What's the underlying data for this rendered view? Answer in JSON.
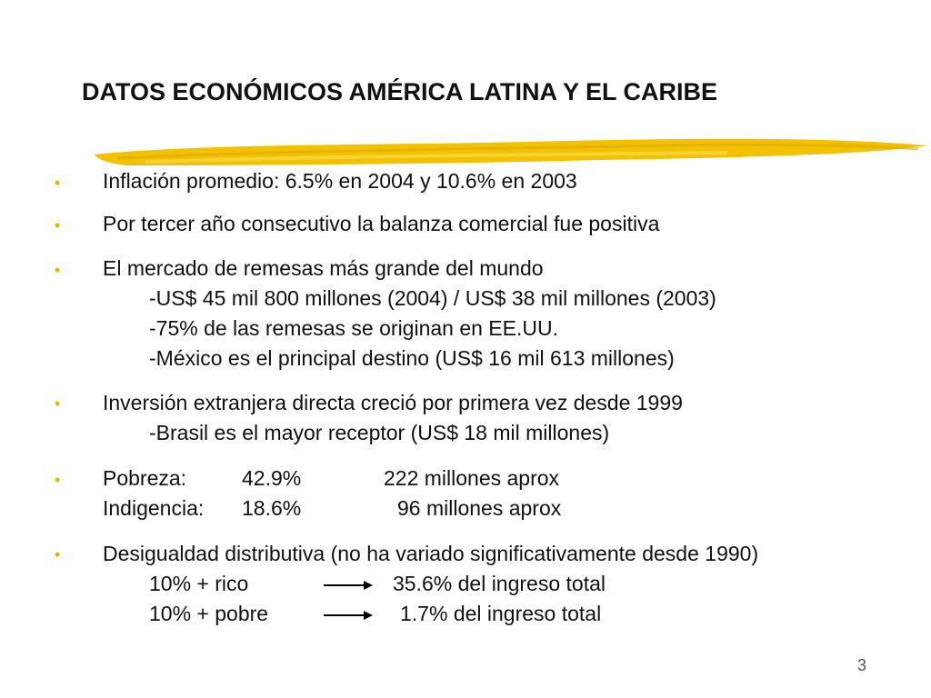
{
  "title": "DATOS ECONÓMICOS AMÉRICA LATINA Y EL CARIBE",
  "accent_color": "#f2c200",
  "bullet_glyph": "•",
  "items": [
    {
      "text": "Inflación promedio:  6.5% en 2004 y 10.6% en 2003"
    },
    {
      "text": "Por tercer año consecutivo la balanza comercial fue positiva"
    },
    {
      "text": "El mercado de remesas más grande del mundo",
      "subs": [
        "-US$ 45 mil 800 millones (2004) / US$ 38 mil millones (2003)",
        "-75% de las remesas se originan en EE.UU.",
        "-México es el principal destino (US$ 16 mil 613 millones)"
      ]
    },
    {
      "text": "Inversión extranjera directa creció por primera vez desde 1999",
      "subs": [
        "-Brasil es el mayor receptor (US$ 18 mil millones)"
      ]
    },
    {
      "poverty": {
        "label": "Pobreza:",
        "pct": "42.9%",
        "value": "222 millones aprox"
      },
      "indigence": {
        "label": "Indigencia:",
        "pct": "18.6%",
        "value": "96 millones aprox"
      }
    },
    {
      "text": "Desigualdad distributiva (no ha variado significativamente desde 1990)",
      "rich": {
        "label": "10% + rico",
        "value": "35.6% del ingreso total"
      },
      "poor": {
        "label": "10% + pobre",
        "value": "1.7% del ingreso total"
      }
    }
  ],
  "page_number": "3"
}
